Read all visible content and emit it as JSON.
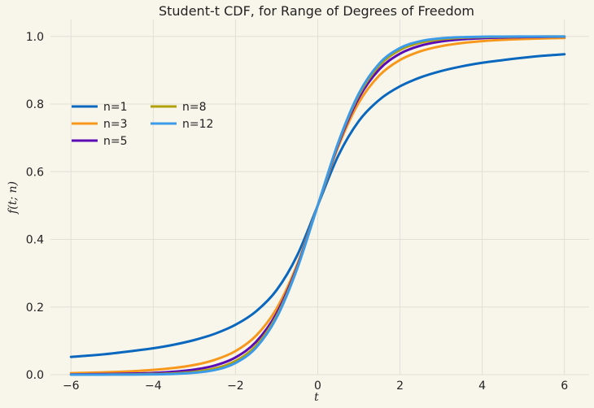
{
  "chart_data": {
    "type": "line",
    "title": "Student-t CDF, for Range of Degrees of Freedom",
    "xlabel": "t",
    "ylabel": "f(t; n)",
    "xlim": [
      -6.5,
      6.6
    ],
    "ylim": [
      0.0,
      1.05
    ],
    "xticks": [
      -6,
      -4,
      -2,
      0,
      2,
      4,
      6
    ],
    "xtick_labels": [
      "−6",
      "−4",
      "−2",
      "0",
      "2",
      "4",
      "6"
    ],
    "yticks": [
      0.0,
      0.2,
      0.4,
      0.6,
      0.8,
      1.0
    ],
    "ytick_labels": [
      "0.0",
      "0.2",
      "0.4",
      "0.6",
      "0.8",
      "1.0"
    ],
    "grid": true,
    "legend": {
      "placement": "center-left",
      "columns": 2
    },
    "x": [
      -6,
      -5.5,
      -5,
      -4.5,
      -4,
      -3.5,
      -3,
      -2.5,
      -2,
      -1.5,
      -1,
      -0.5,
      0,
      0.5,
      1,
      1.5,
      2,
      2.5,
      3,
      3.5,
      4,
      4.5,
      5,
      5.5,
      6
    ],
    "series": [
      {
        "name": "n=1",
        "color": "#0a67be",
        "values": [
          0.0526,
          0.057,
          0.0628,
          0.0701,
          0.078,
          0.0886,
          0.1024,
          0.1211,
          0.1476,
          0.1872,
          0.25,
          0.3524,
          0.5,
          0.6476,
          0.75,
          0.8128,
          0.8524,
          0.8789,
          0.8976,
          0.9114,
          0.922,
          0.9299,
          0.9372,
          0.943,
          0.9474
        ]
      },
      {
        "name": "n=3",
        "color": "#f7981c",
        "values": [
          0.0046,
          0.0059,
          0.0077,
          0.0102,
          0.014,
          0.0197,
          0.0288,
          0.0439,
          0.0697,
          0.1152,
          0.1955,
          0.3257,
          0.5,
          0.6743,
          0.8045,
          0.8848,
          0.9303,
          0.9561,
          0.9712,
          0.9803,
          0.986,
          0.9898,
          0.9923,
          0.9941,
          0.9954
        ]
      },
      {
        "name": "n=5",
        "color": "#5b0bb5",
        "values": [
          0.0009,
          0.0014,
          0.0021,
          0.0032,
          0.0052,
          0.0087,
          0.015,
          0.0273,
          0.051,
          0.097,
          0.1816,
          0.3191,
          0.5,
          0.6809,
          0.8184,
          0.903,
          0.949,
          0.9727,
          0.985,
          0.9913,
          0.9948,
          0.9968,
          0.9979,
          0.9986,
          0.9991
        ]
      },
      {
        "name": "n=8",
        "color": "#b0a00a",
        "values": [
          0.0002,
          0.0003,
          0.0005,
          0.001,
          0.002,
          0.004,
          0.0085,
          0.0185,
          0.0403,
          0.086,
          0.1733,
          0.3153,
          0.5,
          0.6847,
          0.8267,
          0.914,
          0.9597,
          0.9815,
          0.9915,
          0.996,
          0.998,
          0.999,
          0.9995,
          0.9997,
          0.9998
        ]
      },
      {
        "name": "n=12",
        "color": "#3c9be8",
        "values": [
          3e-05,
          7e-05,
          0.00016,
          0.0004,
          0.0009,
          0.0022,
          0.0056,
          0.0139,
          0.0344,
          0.0797,
          0.1685,
          0.313,
          0.5,
          0.687,
          0.8315,
          0.9203,
          0.9656,
          0.9861,
          0.9944,
          0.9978,
          0.9991,
          0.9996,
          0.99984,
          0.99993,
          0.99997
        ]
      }
    ]
  }
}
